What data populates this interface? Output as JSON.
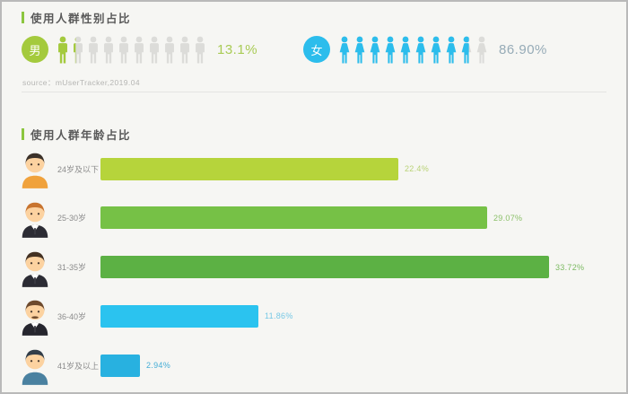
{
  "colors": {
    "accent_green": "#8cc63f",
    "icon_gray": "#dcdcd9",
    "page_bg": "#f6f6f3"
  },
  "gender_section": {
    "title": "使用人群性别占比",
    "source": "source：mUserTracker,2019.04",
    "icons_total": 10,
    "male": {
      "label": "男",
      "value_label": "13.1%",
      "fraction_of_icons": 1.31,
      "color": "#a4ca3d",
      "value_color": "#a9cb55"
    },
    "female": {
      "label": "女",
      "value_label": "86.90%",
      "fraction_of_icons": 8.69,
      "color": "#2cbdec",
      "value_color": "#96abb7"
    }
  },
  "age_section": {
    "title": "使用人群年龄占比",
    "rows": [
      {
        "label": "24岁及以下",
        "value": 22.4,
        "value_label": "22.4%",
        "bar_color": "#b6d43b",
        "value_color": "#b9d276",
        "avatar": {
          "hair": "#3b3129",
          "clothes": "#f0a23c",
          "suit": false,
          "mustache": false
        }
      },
      {
        "label": "25-30岁",
        "value": 29.07,
        "value_label": "29.07%",
        "bar_color": "#76c146",
        "value_color": "#8cc06a",
        "avatar": {
          "hair": "#c8742f",
          "clothes": "#2c2c34",
          "suit": true,
          "mustache": false
        }
      },
      {
        "label": "31-35岁",
        "value": 33.72,
        "value_label": "33.72%",
        "bar_color": "#5cb144",
        "value_color": "#7cba62",
        "avatar": {
          "hair": "#433122",
          "clothes": "#2c2c34",
          "suit": true,
          "mustache": false
        }
      },
      {
        "label": "36-40岁",
        "value": 11.86,
        "value_label": "11.86%",
        "bar_color": "#2bc3ef",
        "value_color": "#77c8e5",
        "avatar": {
          "hair": "#6d4a2d",
          "clothes": "#26262e",
          "suit": true,
          "mustache": true
        }
      },
      {
        "label": "41岁及以上",
        "value": 2.94,
        "value_label": "2.94%",
        "bar_color": "#28b1e0",
        "value_color": "#46aed6",
        "avatar": {
          "hair": "#323d49",
          "clothes": "#4a81a0",
          "suit": false,
          "mustache": false
        }
      }
    ]
  },
  "chart_data": [
    {
      "type": "bar",
      "subtype": "pictograph",
      "title": "使用人群性别占比",
      "categories": [
        "男",
        "女"
      ],
      "values": [
        13.1,
        86.9
      ],
      "unit": "%",
      "icons_per_category": 10,
      "colors": [
        "#a4ca3d",
        "#2cbdec"
      ],
      "source": "source：mUserTracker,2019.04"
    },
    {
      "type": "bar",
      "orientation": "horizontal",
      "title": "使用人群年龄占比",
      "categories": [
        "24岁及以下",
        "25-30岁",
        "31-35岁",
        "36-40岁",
        "41岁及以上"
      ],
      "values": [
        22.4,
        29.07,
        33.72,
        11.86,
        2.94
      ],
      "unit": "%",
      "xlim": [
        0,
        35
      ],
      "grid": false,
      "legend": false,
      "bar_colors": [
        "#b6d43b",
        "#76c146",
        "#5cb144",
        "#2bc3ef",
        "#28b1e0"
      ]
    }
  ]
}
